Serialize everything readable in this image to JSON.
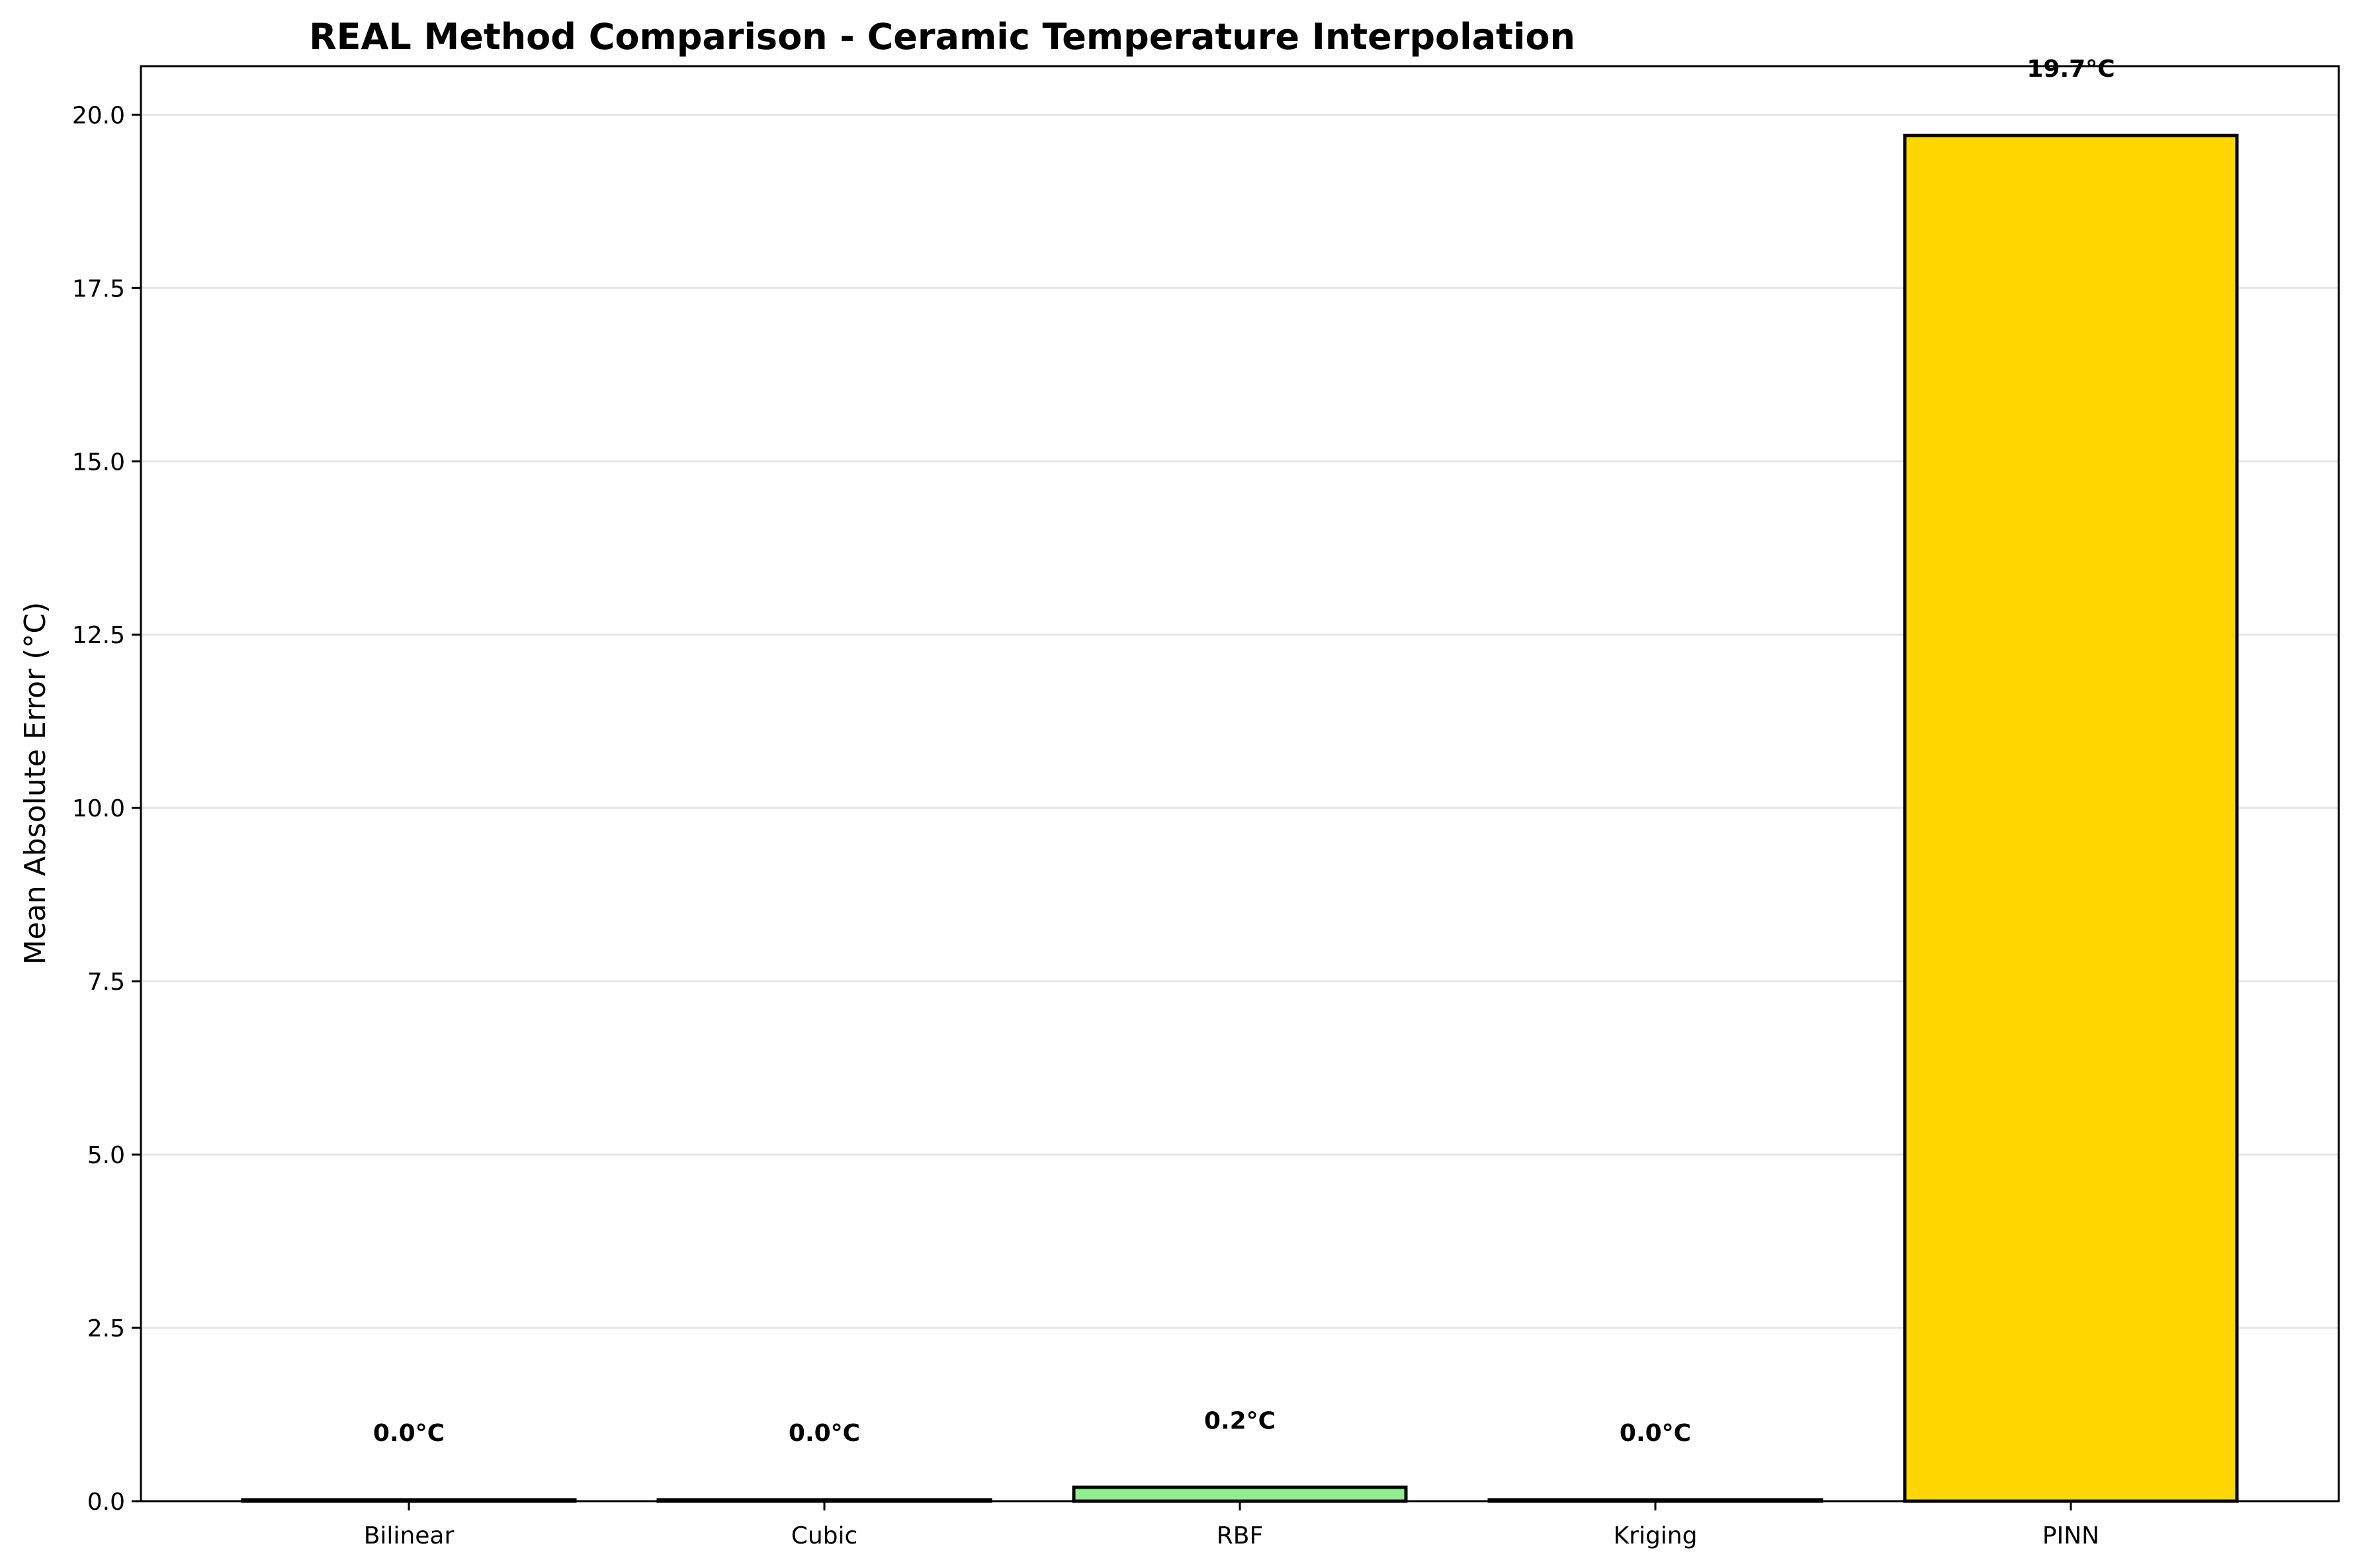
{
  "chart_data": {
    "type": "bar",
    "title": "REAL Method Comparison - Ceramic Temperature Interpolation",
    "xlabel": "",
    "ylabel": "Mean Absolute Error (°C)",
    "categories": [
      "Bilinear",
      "Cubic",
      "RBF",
      "Kriging",
      "PINN"
    ],
    "values": [
      0.02,
      0.02,
      0.2,
      0.02,
      19.7
    ],
    "data_labels": [
      "0.0°C",
      "0.0°C",
      "0.2°C",
      "0.0°C",
      "19.7°C"
    ],
    "colors": [
      "#87ceeb",
      "#87ceeb",
      "#90ee90",
      "#87ceeb",
      "#ffd700"
    ],
    "ylim": [
      0,
      20.7
    ],
    "yticks": [
      0.0,
      2.5,
      5.0,
      7.5,
      10.0,
      12.5,
      15.0,
      17.5,
      20.0
    ],
    "ytick_labels": [
      "0.0",
      "2.5",
      "5.0",
      "7.5",
      "10.0",
      "12.5",
      "15.0",
      "17.5",
      "20.0"
    ],
    "grid": "y",
    "legend": "none"
  }
}
